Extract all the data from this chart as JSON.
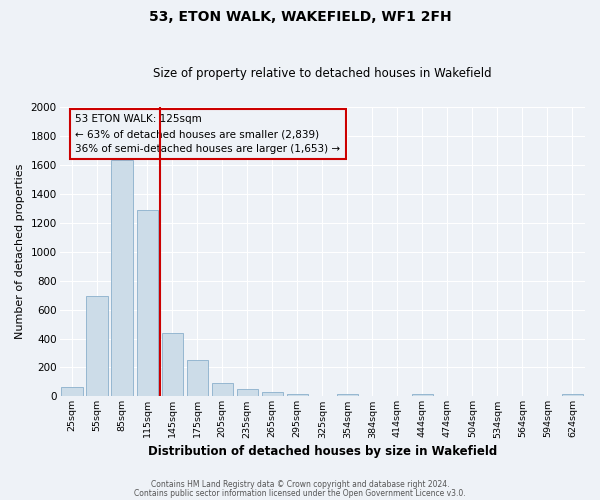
{
  "title": "53, ETON WALK, WAKEFIELD, WF1 2FH",
  "subtitle": "Size of property relative to detached houses in Wakefield",
  "xlabel": "Distribution of detached houses by size in Wakefield",
  "ylabel": "Number of detached properties",
  "bar_color": "#ccdce8",
  "bar_edge_color": "#8ab0cc",
  "categories": [
    "25sqm",
    "55sqm",
    "85sqm",
    "115sqm",
    "145sqm",
    "175sqm",
    "205sqm",
    "235sqm",
    "265sqm",
    "295sqm",
    "325sqm",
    "354sqm",
    "384sqm",
    "414sqm",
    "444sqm",
    "474sqm",
    "504sqm",
    "534sqm",
    "564sqm",
    "594sqm",
    "624sqm"
  ],
  "values": [
    65,
    695,
    1635,
    1285,
    440,
    255,
    90,
    52,
    30,
    20,
    0,
    15,
    0,
    0,
    15,
    0,
    0,
    0,
    0,
    0,
    15
  ],
  "ylim": [
    0,
    2000
  ],
  "yticks": [
    0,
    200,
    400,
    600,
    800,
    1000,
    1200,
    1400,
    1600,
    1800,
    2000
  ],
  "vline_x_index": 3.5,
  "vline_color": "#cc0000",
  "annotation_title": "53 ETON WALK: 125sqm",
  "annotation_line1": "← 63% of detached houses are smaller (2,839)",
  "annotation_line2": "36% of semi-detached houses are larger (1,653) →",
  "annotation_box_color": "#cc0000",
  "background_color": "#eef2f7",
  "grid_color": "#ffffff",
  "footer1": "Contains HM Land Registry data © Crown copyright and database right 2024.",
  "footer2": "Contains public sector information licensed under the Open Government Licence v3.0."
}
